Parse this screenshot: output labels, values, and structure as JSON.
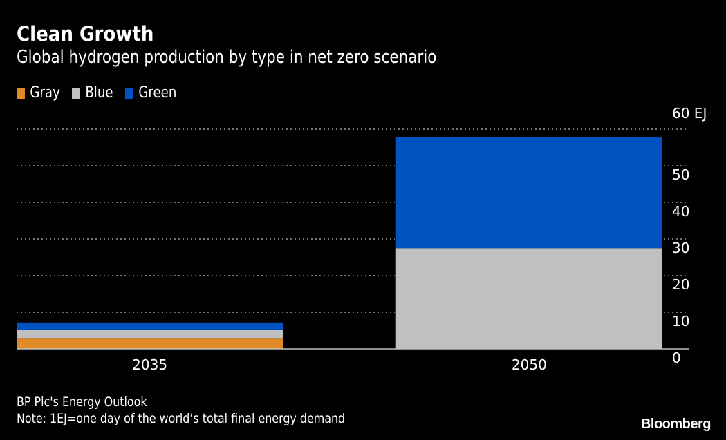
{
  "chart_data": {
    "type": "bar",
    "stacked": true,
    "title": "Clean Growth",
    "subtitle": "Global hydrogen production by type in net zero scenario",
    "categories": [
      "2035",
      "2050"
    ],
    "series": [
      {
        "name": "Gray",
        "color": "#e08a28",
        "values": [
          2.8,
          0
        ]
      },
      {
        "name": "Blue",
        "color": "#c0c0c0",
        "values": [
          2.3,
          27.5
        ]
      },
      {
        "name": "Green",
        "color": "#0053bf",
        "values": [
          2.1,
          30.3
        ]
      }
    ],
    "xlabel": "",
    "ylabel": "EJ",
    "ylim": [
      0,
      60
    ],
    "yticks": [
      0,
      10,
      20,
      30,
      40,
      50,
      60
    ],
    "ytick_labels": [
      "0",
      "10",
      "20",
      "30",
      "40",
      "50",
      "60 EJ"
    ],
    "y_axis_position": "right",
    "grid": true,
    "legend_position": "top-left"
  },
  "footer": {
    "source": "BP Plc's Energy Outlook",
    "note": "Note: 1EJ=one day of the world’s total final energy demand",
    "brand": "Bloomberg"
  }
}
